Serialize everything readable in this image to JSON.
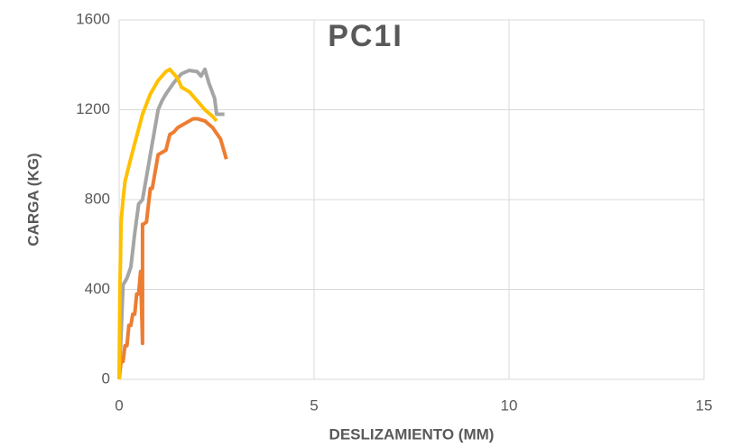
{
  "chart_data": {
    "type": "line",
    "title": "PC1I",
    "x_label": "DESLIZAMIENTO (MM)",
    "y_label": "CARGA (KG)",
    "xlim": [
      0,
      15
    ],
    "xticks": [
      0,
      5,
      10,
      15
    ],
    "ylim": [
      0,
      1600
    ],
    "yticks": [
      0,
      400,
      800,
      1200,
      1600
    ],
    "grid": true,
    "series": [
      {
        "color": "#ED7D31",
        "x": [
          0,
          0.05,
          0.1,
          0.15,
          0.2,
          0.25,
          0.3,
          0.35,
          0.4,
          0.45,
          0.5,
          0.55,
          0.6,
          0.6,
          0.62,
          0.7,
          0.8,
          0.85,
          0.9,
          1.0,
          1.1,
          1.2,
          1.3,
          1.4,
          1.5,
          1.7,
          1.9,
          2.0,
          2.2,
          2.4,
          2.6,
          2.75
        ],
        "values": [
          0,
          80,
          80,
          150,
          150,
          240,
          240,
          290,
          290,
          380,
          380,
          480,
          160,
          690,
          690,
          700,
          850,
          850,
          900,
          1000,
          1010,
          1020,
          1090,
          1100,
          1120,
          1140,
          1160,
          1160,
          1150,
          1120,
          1070,
          980
        ]
      },
      {
        "color": "#A5A5A5",
        "x": [
          0,
          0.05,
          0.1,
          0.2,
          0.3,
          0.4,
          0.5,
          0.6,
          0.7,
          0.8,
          0.9,
          1.0,
          1.1,
          1.2,
          1.4,
          1.6,
          1.8,
          2.0,
          2.1,
          2.2,
          2.3,
          2.45,
          2.5,
          2.7
        ],
        "values": [
          0,
          200,
          420,
          450,
          500,
          650,
          780,
          800,
          900,
          1000,
          1100,
          1200,
          1240,
          1270,
          1320,
          1360,
          1375,
          1370,
          1350,
          1380,
          1320,
          1250,
          1180,
          1180
        ]
      },
      {
        "color": "#FFC000",
        "x": [
          0,
          0.02,
          0.05,
          0.1,
          0.15,
          0.25,
          0.4,
          0.6,
          0.8,
          1.0,
          1.2,
          1.3,
          1.4,
          1.5,
          1.6,
          1.8,
          2.0,
          2.2,
          2.4,
          2.5
        ],
        "values": [
          0,
          400,
          700,
          800,
          880,
          950,
          1050,
          1180,
          1270,
          1330,
          1370,
          1380,
          1360,
          1340,
          1300,
          1280,
          1240,
          1200,
          1170,
          1150
        ]
      }
    ]
  }
}
